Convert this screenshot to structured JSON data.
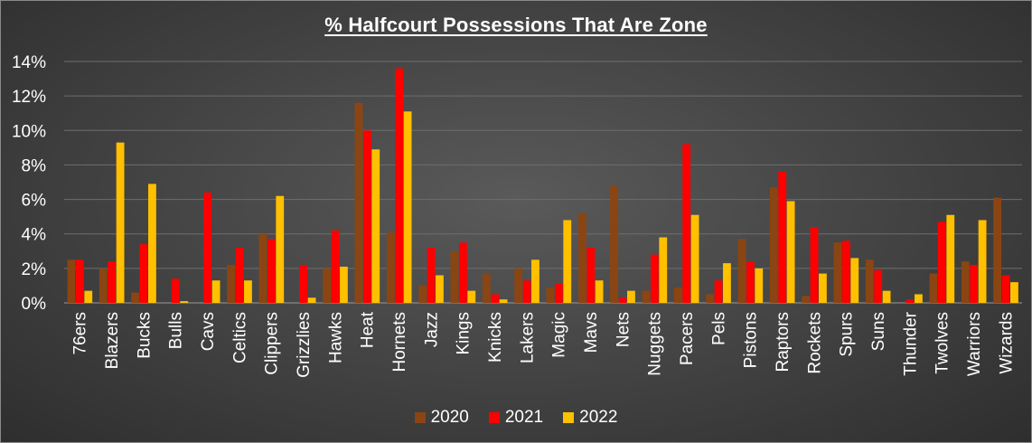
{
  "chart_data": {
    "type": "bar",
    "title": "% Halfcourt Possessions That Are Zone",
    "xlabel": "",
    "ylabel": "",
    "ylim": [
      0,
      14
    ],
    "yticks": [
      "0%",
      "2%",
      "4%",
      "6%",
      "8%",
      "10%",
      "12%",
      "14%"
    ],
    "grid": true,
    "legend_position": "bottom",
    "categories": [
      "76ers",
      "Blazers",
      "Bucks",
      "Bulls",
      "Cavs",
      "Celtics",
      "Clippers",
      "Grizzlies",
      "Hawks",
      "Heat",
      "Hornets",
      "Jazz",
      "Kings",
      "Knicks",
      "Lakers",
      "Magic",
      "Mavs",
      "Nets",
      "Nuggets",
      "Pacers",
      "Pels",
      "Pistons",
      "Raptors",
      "Rockets",
      "Spurs",
      "Suns",
      "Thunder",
      "Twolves",
      "Warriors",
      "Wizards"
    ],
    "series": [
      {
        "name": "2020",
        "color": "#8B4513",
        "values": [
          2.5,
          2.0,
          0.6,
          0.0,
          0.0,
          2.2,
          4.0,
          0.0,
          2.0,
          11.6,
          4.1,
          1.0,
          3.0,
          1.7,
          2.0,
          0.9,
          5.2,
          6.8,
          0.7,
          0.9,
          0.5,
          3.7,
          6.7,
          0.4,
          3.5,
          2.5,
          0.0,
          1.7,
          2.4,
          6.1
        ]
      },
      {
        "name": "2021",
        "color": "#FF0000",
        "values": [
          2.5,
          2.4,
          3.4,
          1.4,
          6.4,
          3.2,
          3.7,
          2.2,
          4.2,
          10.0,
          13.6,
          3.2,
          3.5,
          0.5,
          1.3,
          1.1,
          3.2,
          0.3,
          2.8,
          9.2,
          1.3,
          2.4,
          7.6,
          4.4,
          3.6,
          1.9,
          0.2,
          4.7,
          2.2,
          1.6
        ]
      },
      {
        "name": "2022",
        "color": "#FFC000",
        "values": [
          0.7,
          9.3,
          6.9,
          0.1,
          1.3,
          1.3,
          6.2,
          0.3,
          2.1,
          8.9,
          11.1,
          1.6,
          0.7,
          0.2,
          2.5,
          4.8,
          1.3,
          0.7,
          3.8,
          5.1,
          2.3,
          2.0,
          5.9,
          1.7,
          2.6,
          0.7,
          0.5,
          5.1,
          4.8,
          1.2
        ]
      }
    ]
  }
}
